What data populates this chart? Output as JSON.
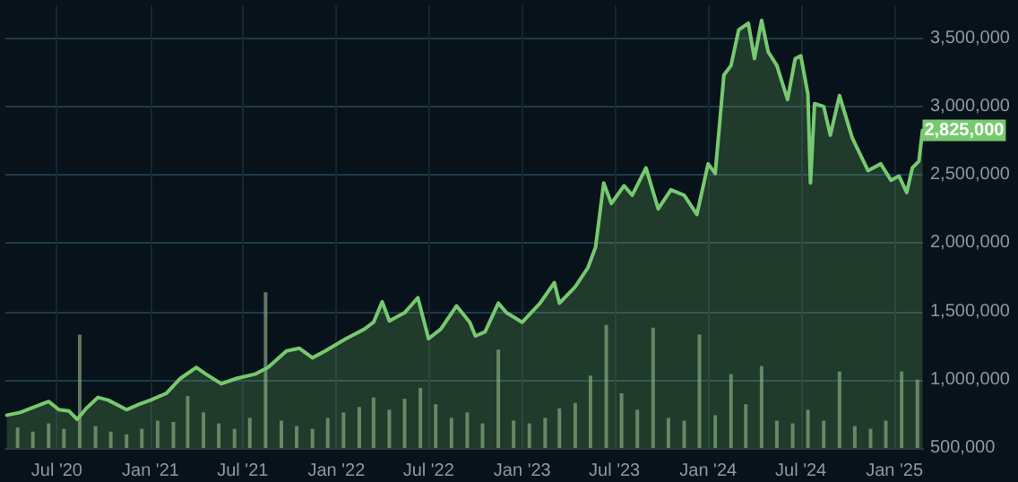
{
  "chart_data": {
    "type": "area",
    "xlim": [
      "2020-03-22",
      "2025-02-26"
    ],
    "ylim": [
      500000,
      3740000
    ],
    "xticks": [
      {
        "value": "2020-07-01",
        "label": "Jul '20"
      },
      {
        "value": "2021-01-01",
        "label": "Jan '21"
      },
      {
        "value": "2021-07-01",
        "label": "Jul '21"
      },
      {
        "value": "2022-01-01",
        "label": "Jan '22"
      },
      {
        "value": "2022-07-01",
        "label": "Jul '22"
      },
      {
        "value": "2023-01-01",
        "label": "Jan '23"
      },
      {
        "value": "2023-07-01",
        "label": "Jul '23"
      },
      {
        "value": "2024-01-01",
        "label": "Jan '24"
      },
      {
        "value": "2024-07-01",
        "label": "Jul '24"
      },
      {
        "value": "2025-01-01",
        "label": "Jan '25"
      }
    ],
    "yticks": [
      {
        "value": 500000,
        "label": "500,000"
      },
      {
        "value": 1000000,
        "label": "1,000,000"
      },
      {
        "value": 1500000,
        "label": "1,500,000"
      },
      {
        "value": 2000000,
        "label": "2,000,000"
      },
      {
        "value": 2500000,
        "label": "2,500,000"
      },
      {
        "value": 3000000,
        "label": "3,000,000"
      },
      {
        "value": 3500000,
        "label": "3,500,000"
      }
    ],
    "grid": true,
    "marker": "none",
    "series": [
      {
        "type": "bar",
        "color": "#7e9b78",
        "x": [
          "2020-04-15",
          "2020-05-15",
          "2020-06-15",
          "2020-07-15",
          "2020-08-15",
          "2020-09-15",
          "2020-10-15",
          "2020-11-15",
          "2020-12-15",
          "2021-01-15",
          "2021-02-15",
          "2021-03-15",
          "2021-04-15",
          "2021-05-15",
          "2021-06-15",
          "2021-07-15",
          "2021-08-15",
          "2021-09-15",
          "2021-10-15",
          "2021-11-15",
          "2021-12-15",
          "2022-01-15",
          "2022-02-15",
          "2022-03-15",
          "2022-04-15",
          "2022-05-15",
          "2022-06-15",
          "2022-07-15",
          "2022-08-15",
          "2022-09-15",
          "2022-10-15",
          "2022-11-15",
          "2022-12-15",
          "2023-01-15",
          "2023-02-15",
          "2023-03-15",
          "2023-04-15",
          "2023-05-15",
          "2023-06-15",
          "2023-07-15",
          "2023-08-15",
          "2023-09-15",
          "2023-10-15",
          "2023-11-15",
          "2023-12-15",
          "2024-01-15",
          "2024-02-15",
          "2024-03-15",
          "2024-04-15",
          "2024-05-15",
          "2024-06-15",
          "2024-07-15",
          "2024-08-15",
          "2024-09-15",
          "2024-10-15",
          "2024-11-15",
          "2024-12-15",
          "2025-01-15",
          "2025-02-15"
        ],
        "values": [
          650000,
          620000,
          680000,
          640000,
          1330000,
          660000,
          620000,
          600000,
          640000,
          700000,
          690000,
          880000,
          760000,
          680000,
          640000,
          720000,
          1640000,
          700000,
          660000,
          640000,
          720000,
          760000,
          800000,
          870000,
          780000,
          860000,
          940000,
          820000,
          720000,
          760000,
          680000,
          1220000,
          700000,
          680000,
          720000,
          790000,
          830000,
          1030000,
          1400000,
          900000,
          780000,
          1380000,
          720000,
          700000,
          1330000,
          740000,
          1040000,
          820000,
          1100000,
          700000,
          680000,
          780000,
          700000,
          1060000,
          660000,
          640000,
          700000,
          1060000,
          1000000
        ]
      },
      {
        "color": "#76c96f",
        "x": [
          "2020-03-25",
          "2020-04-20",
          "2020-06-01",
          "2020-06-15",
          "2020-07-05",
          "2020-07-25",
          "2020-08-10",
          "2020-08-28",
          "2020-09-20",
          "2020-10-10",
          "2020-11-15",
          "2020-12-10",
          "2021-01-01",
          "2021-02-01",
          "2021-03-01",
          "2021-04-01",
          "2021-04-20",
          "2021-05-20",
          "2021-06-20",
          "2021-07-25",
          "2021-08-20",
          "2021-09-25",
          "2021-10-20",
          "2021-11-15",
          "2021-12-10",
          "2022-01-20",
          "2022-02-25",
          "2022-03-15",
          "2022-04-01",
          "2022-04-15",
          "2022-05-15",
          "2022-06-10",
          "2022-07-01",
          "2022-07-25",
          "2022-08-25",
          "2022-09-20",
          "2022-10-01",
          "2022-10-20",
          "2022-11-15",
          "2022-12-01",
          "2023-01-01",
          "2023-02-05",
          "2023-03-05",
          "2023-03-15",
          "2023-04-15",
          "2023-05-10",
          "2023-05-25",
          "2023-06-10",
          "2023-06-25",
          "2023-07-20",
          "2023-08-05",
          "2023-09-01",
          "2023-09-25",
          "2023-10-20",
          "2023-11-15",
          "2023-12-10",
          "2024-01-01",
          "2024-01-15",
          "2024-02-01",
          "2024-02-15",
          "2024-03-01",
          "2024-03-20",
          "2024-04-01",
          "2024-04-15",
          "2024-04-28",
          "2024-05-15",
          "2024-06-05",
          "2024-06-20",
          "2024-07-01",
          "2024-07-15",
          "2024-07-20",
          "2024-07-28",
          "2024-08-15",
          "2024-08-28",
          "2024-09-15",
          "2024-10-10",
          "2024-11-10",
          "2024-12-05",
          "2024-12-25",
          "2025-01-10",
          "2025-01-25",
          "2025-02-05",
          "2025-02-18",
          "2025-02-25"
        ],
        "values": [
          740000,
          760000,
          820000,
          840000,
          780000,
          770000,
          710000,
          790000,
          870000,
          850000,
          780000,
          820000,
          850000,
          900000,
          1010000,
          1090000,
          1040000,
          970000,
          1010000,
          1040000,
          1090000,
          1210000,
          1230000,
          1160000,
          1210000,
          1300000,
          1370000,
          1420000,
          1570000,
          1430000,
          1490000,
          1600000,
          1300000,
          1370000,
          1540000,
          1420000,
          1320000,
          1350000,
          1560000,
          1490000,
          1420000,
          1560000,
          1710000,
          1560000,
          1680000,
          1820000,
          1970000,
          2440000,
          2290000,
          2420000,
          2350000,
          2550000,
          2250000,
          2390000,
          2350000,
          2210000,
          2580000,
          2510000,
          3230000,
          3300000,
          3560000,
          3610000,
          3350000,
          3630000,
          3400000,
          3300000,
          3050000,
          3350000,
          3370000,
          3090000,
          2440000,
          3020000,
          3000000,
          2790000,
          3080000,
          2770000,
          2530000,
          2580000,
          2460000,
          2490000,
          2370000,
          2550000,
          2600000,
          2825000
        ],
        "value_labels": [
          null,
          null,
          null,
          null,
          null,
          null,
          null,
          null,
          null,
          null,
          null,
          null,
          null,
          null,
          null,
          null,
          null,
          null,
          null,
          null,
          null,
          null,
          null,
          null,
          null,
          null,
          null,
          null,
          null,
          null,
          null,
          null,
          null,
          null,
          null,
          null,
          null,
          null,
          null,
          null,
          null,
          null,
          null,
          null,
          null,
          null,
          null,
          null,
          null,
          null,
          null,
          null,
          null,
          null,
          null,
          null,
          null,
          null,
          null,
          null,
          null,
          null,
          null,
          null,
          null,
          null,
          null,
          null,
          null,
          null,
          null,
          null,
          null,
          null,
          null,
          null,
          null,
          null,
          null,
          null,
          null,
          null,
          null,
          "2,825,000"
        ]
      }
    ]
  }
}
